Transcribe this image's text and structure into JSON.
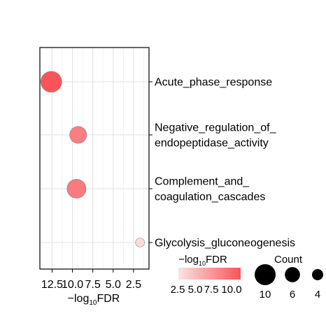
{
  "chart_data": {
    "type": "scatter",
    "xlabel": "−log10FDR",
    "x_reversed": true,
    "xlim": [
      14.0,
      0.6
    ],
    "x_ticks": [
      12.5,
      10.0,
      7.5,
      5.0,
      2.5
    ],
    "x_tick_labels": [
      "12.5",
      "10.0",
      "7.5",
      "5.0",
      "2.5"
    ],
    "categories": [
      [
        "Acute_phase_response"
      ],
      [
        "Negative_regulation_of_",
        "endopeptidase_activity"
      ],
      [
        "Complement_and_",
        "coagulation_cascades"
      ],
      [
        "Glycolysis_gluconeogenesis"
      ]
    ],
    "points": [
      {
        "x": 12.6,
        "count": 10
      },
      {
        "x": 9.3,
        "count": 8
      },
      {
        "x": 9.5,
        "count": 9
      },
      {
        "x": 1.7,
        "count": 4
      }
    ],
    "grid": true,
    "color_legend": {
      "title": "−log10FDR",
      "labels": [
        "2.5",
        "5.0",
        "7.5",
        "10.0"
      ],
      "range": [
        1.0,
        12.6
      ],
      "low_color": "#fbe3e3",
      "high_color": "#f8545a",
      "position": "bottom-right"
    },
    "size_legend": {
      "title": "Count",
      "values": [
        10,
        6,
        4
      ],
      "labels": [
        "10",
        "6",
        "4"
      ],
      "position": "bottom-right"
    }
  }
}
